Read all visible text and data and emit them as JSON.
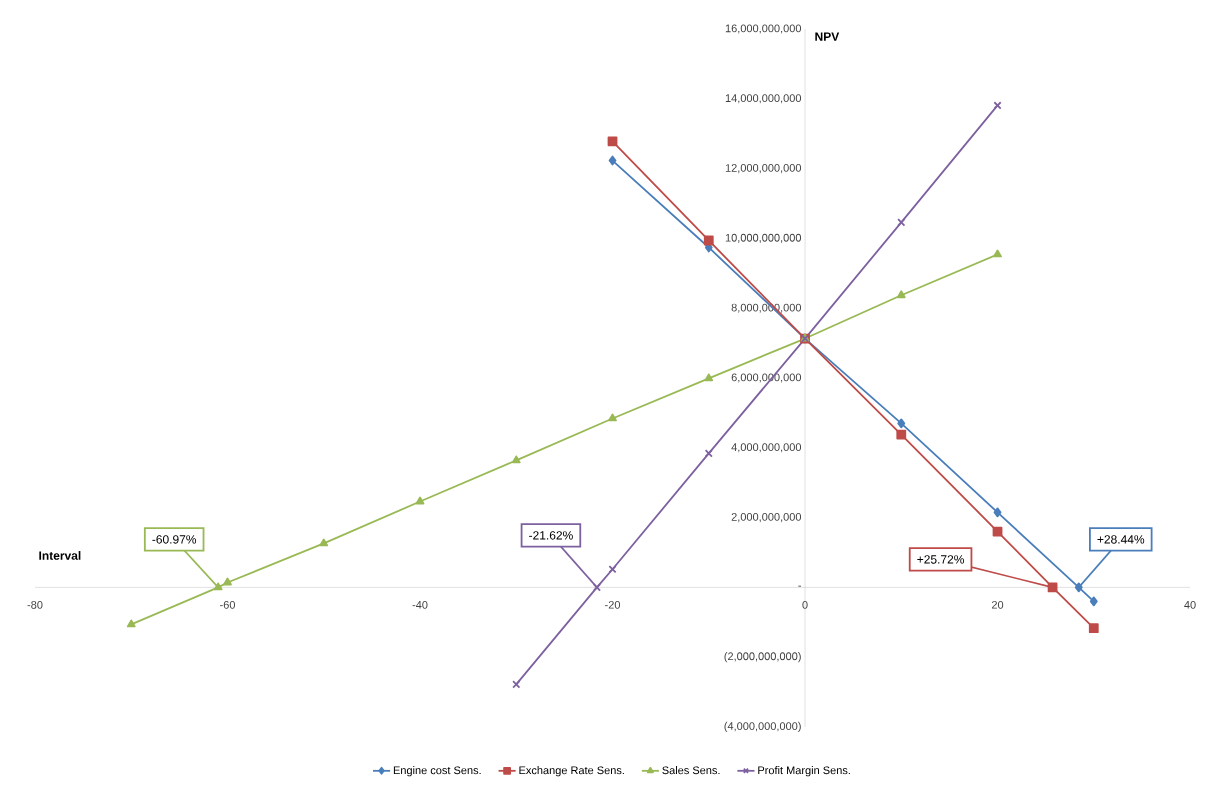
{
  "chart_data": {
    "type": "line",
    "xlabel": "Interval",
    "ylabel": "NPV",
    "xlim": [
      -80,
      40
    ],
    "xticks": [
      -80,
      -60,
      -40,
      -20,
      0,
      20,
      40
    ],
    "ylim": [
      -4000000000,
      16000000000
    ],
    "yticks": [
      {
        "value": -4000000000,
        "label": "(4,000,000,000)"
      },
      {
        "value": -2000000000,
        "label": "(2,000,000,000)"
      },
      {
        "value": 0,
        "label": "-"
      },
      {
        "value": 2000000000,
        "label": "2,000,000,000"
      },
      {
        "value": 4000000000,
        "label": "4,000,000,000"
      },
      {
        "value": 6000000000,
        "label": "6,000,000,000"
      },
      {
        "value": 8000000000,
        "label": "8,000,000,000"
      },
      {
        "value": 10000000000,
        "label": "10,000,000,000"
      },
      {
        "value": 12000000000,
        "label": "12,000,000,000"
      },
      {
        "value": 14000000000,
        "label": "14,000,000,000"
      },
      {
        "value": 16000000000,
        "label": "16,000,000,000"
      }
    ],
    "grid": false,
    "legend": "bottom",
    "series": [
      {
        "name": "Engine cost Sens.",
        "color": "#4a7ebb",
        "marker": "diamond",
        "x": [
          -20,
          -10,
          0,
          10,
          20,
          28.44,
          30
        ],
        "values": [
          12230000000,
          9740000000,
          7130000000,
          4700000000,
          2150000000,
          0,
          -400000000
        ]
      },
      {
        "name": "Exchange Rate Sens.",
        "color": "#be4b48",
        "marker": "square",
        "x": [
          -20,
          -10,
          0,
          10,
          20,
          25.72,
          30
        ],
        "values": [
          12780000000,
          9940000000,
          7130000000,
          4380000000,
          1600000000,
          0,
          -1170000000
        ]
      },
      {
        "name": "Sales Sens.",
        "color": "#98b954",
        "marker": "triangle",
        "x": [
          -70,
          -60.97,
          -60,
          -50,
          -40,
          -30,
          -20,
          -10,
          0,
          10,
          20
        ],
        "values": [
          -1060000000,
          0,
          140000000,
          1260000000,
          2460000000,
          3640000000,
          4840000000,
          5990000000,
          7130000000,
          8370000000,
          9540000000
        ]
      },
      {
        "name": "Profit Margin Sens.",
        "color": "#7d60a0",
        "marker": "cross",
        "x": [
          -30,
          -21.62,
          -20,
          -10,
          0,
          10,
          20
        ],
        "values": [
          -2780000000,
          0,
          520000000,
          3840000000,
          7130000000,
          10460000000,
          13810000000
        ]
      }
    ],
    "annotations": [
      {
        "text": "-60.97%",
        "x": -60.97,
        "y": 0
      },
      {
        "text": "-21.62%",
        "x": -21.62,
        "y": 0
      },
      {
        "text": "+25.72%",
        "x": 25.72,
        "y": 0
      },
      {
        "text": "+28.44%",
        "x": 28.44,
        "y": 0
      }
    ]
  }
}
